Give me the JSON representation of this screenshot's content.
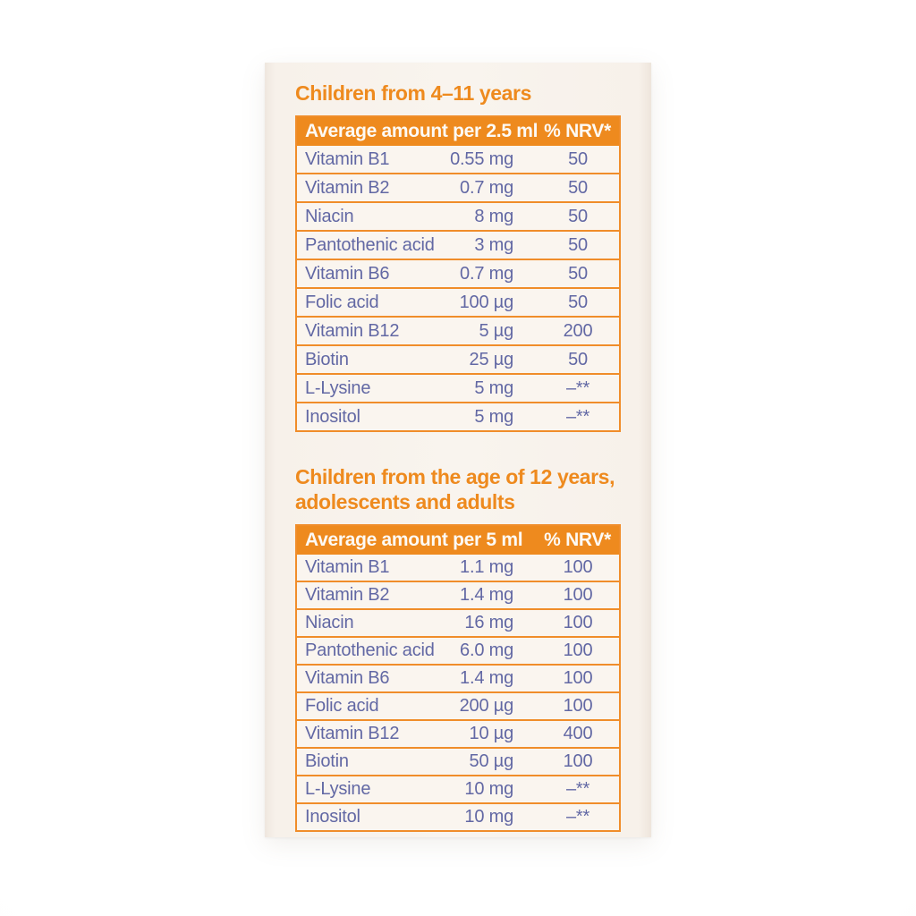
{
  "colors": {
    "orange_accent": "#ee8a1e",
    "table_border_orange": "#f08d2a",
    "row_text_blue": "#6268a4",
    "package_background": "#f8f2ec",
    "header_text": "#fdfaf5"
  },
  "sections": [
    {
      "heading_lines": [
        "Children from 4–11 years"
      ],
      "table": {
        "amount_header": "Average amount per 2.5 ml",
        "nrv_header": "% NRV*",
        "rows": [
          {
            "name": "Vitamin B1",
            "amount": "0.55 mg",
            "nrv": "50"
          },
          {
            "name": "Vitamin B2",
            "amount": "0.7 mg",
            "nrv": "50"
          },
          {
            "name": "Niacin",
            "amount": "8 mg",
            "nrv": "50"
          },
          {
            "name": "Pantothenic acid",
            "amount": "3 mg",
            "nrv": "50"
          },
          {
            "name": "Vitamin B6",
            "amount": "0.7 mg",
            "nrv": "50"
          },
          {
            "name": "Folic acid",
            "amount": "100 µg",
            "nrv": "50"
          },
          {
            "name": "Vitamin B12",
            "amount": "5 µg",
            "nrv": "200"
          },
          {
            "name": "Biotin",
            "amount": "25 µg",
            "nrv": "50"
          },
          {
            "name": "L-Lysine",
            "amount": "5 mg",
            "nrv": "–**"
          },
          {
            "name": "Inositol",
            "amount": "5 mg",
            "nrv": "–**"
          }
        ]
      }
    },
    {
      "heading_lines": [
        "Children from the age of 12 years,",
        "adolescents and adults"
      ],
      "table": {
        "amount_header": "Average amount per 5 ml",
        "nrv_header": "% NRV*",
        "rows": [
          {
            "name": "Vitamin B1",
            "amount": "1.1 mg",
            "nrv": "100"
          },
          {
            "name": "Vitamin B2",
            "amount": "1.4 mg",
            "nrv": "100"
          },
          {
            "name": "Niacin",
            "amount": "16 mg",
            "nrv": "100"
          },
          {
            "name": "Pantothenic acid",
            "amount": "6.0 mg",
            "nrv": "100"
          },
          {
            "name": "Vitamin B6",
            "amount": "1.4 mg",
            "nrv": "100"
          },
          {
            "name": "Folic acid",
            "amount": "200 µg",
            "nrv": "100"
          },
          {
            "name": "Vitamin B12",
            "amount": "10 µg",
            "nrv": "400"
          },
          {
            "name": "Biotin",
            "amount": "50 µg",
            "nrv": "100"
          },
          {
            "name": "L-Lysine",
            "amount": "10 mg",
            "nrv": "–**"
          },
          {
            "name": "Inositol",
            "amount": "10 mg",
            "nrv": "–**"
          }
        ]
      }
    }
  ]
}
